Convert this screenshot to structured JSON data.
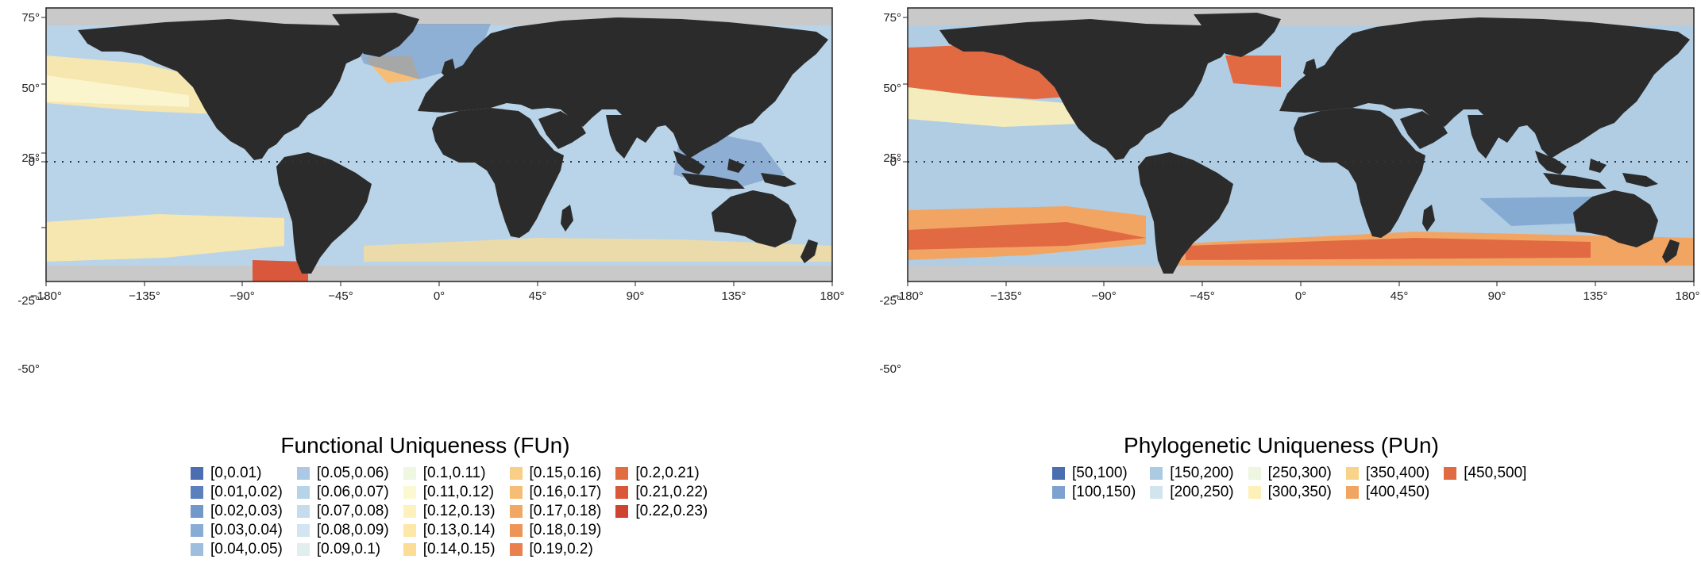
{
  "axes": {
    "x_ticks": [
      "−180°",
      "−135°",
      "−90°",
      "−45°",
      "0°",
      "45°",
      "90°",
      "135°",
      "180°"
    ],
    "y_ticks": [
      "75°",
      "50°",
      "25°",
      "0°",
      "-25°",
      "-50°"
    ]
  },
  "maps": [
    {
      "title": "Functional Uniqueness (FUn)",
      "legend_rows": 5,
      "legend": [
        {
          "label": "[0,0.01)",
          "color": "#4a6eb0"
        },
        {
          "label": "[0.01,0.02)",
          "color": "#5b80bd"
        },
        {
          "label": "[0.02,0.03)",
          "color": "#7198c8"
        },
        {
          "label": "[0.03,0.04)",
          "color": "#88acd3"
        },
        {
          "label": "[0.04,0.05)",
          "color": "#9dbedc"
        },
        {
          "label": "[0.05,0.06)",
          "color": "#abc9e2"
        },
        {
          "label": "[0.06,0.07)",
          "color": "#b7d3e8"
        },
        {
          "label": "[0.07,0.08)",
          "color": "#c4dced"
        },
        {
          "label": "[0.08,0.09)",
          "color": "#d2e5f0"
        },
        {
          "label": "[0.09,0.1)",
          "color": "#e2eeee"
        },
        {
          "label": "[0.1,0.11)",
          "color": "#eff6e2"
        },
        {
          "label": "[0.11,0.12)",
          "color": "#fbf9d2"
        },
        {
          "label": "[0.12,0.13)",
          "color": "#fdf1bd"
        },
        {
          "label": "[0.13,0.14)",
          "color": "#fde8a8"
        },
        {
          "label": "[0.14,0.15)",
          "color": "#fcdd96"
        },
        {
          "label": "[0.15,0.16)",
          "color": "#f9ce86"
        },
        {
          "label": "[0.16,0.17)",
          "color": "#f6bd76"
        },
        {
          "label": "[0.17,0.18)",
          "color": "#f2a865"
        },
        {
          "label": "[0.18,0.19)",
          "color": "#ed9457"
        },
        {
          "label": "[0.19,0.2)",
          "color": "#e8814c"
        },
        {
          "label": "[0.2,0.21)",
          "color": "#e26c42"
        },
        {
          "label": "[0.21,0.22)",
          "color": "#d9573a"
        },
        {
          "label": "[0.22,0.23)",
          "color": "#cf4331"
        }
      ]
    },
    {
      "title": "Phylogenetic Uniqueness (PUn)",
      "legend_rows": 2,
      "legend": [
        {
          "label": "[50,100)",
          "color": "#4a6eb0"
        },
        {
          "label": "[100,150)",
          "color": "#7ca2cd"
        },
        {
          "label": "[150,200)",
          "color": "#abcbe3"
        },
        {
          "label": "[200,250)",
          "color": "#d2e5ef"
        },
        {
          "label": "[250,300)",
          "color": "#eef5e1"
        },
        {
          "label": "[300,350)",
          "color": "#fdf0b8"
        },
        {
          "label": "[350,400)",
          "color": "#f9d389"
        },
        {
          "label": "[400,450)",
          "color": "#f2a562"
        },
        {
          "label": "[450,500]",
          "color": "#e26a43"
        }
      ]
    }
  ]
}
